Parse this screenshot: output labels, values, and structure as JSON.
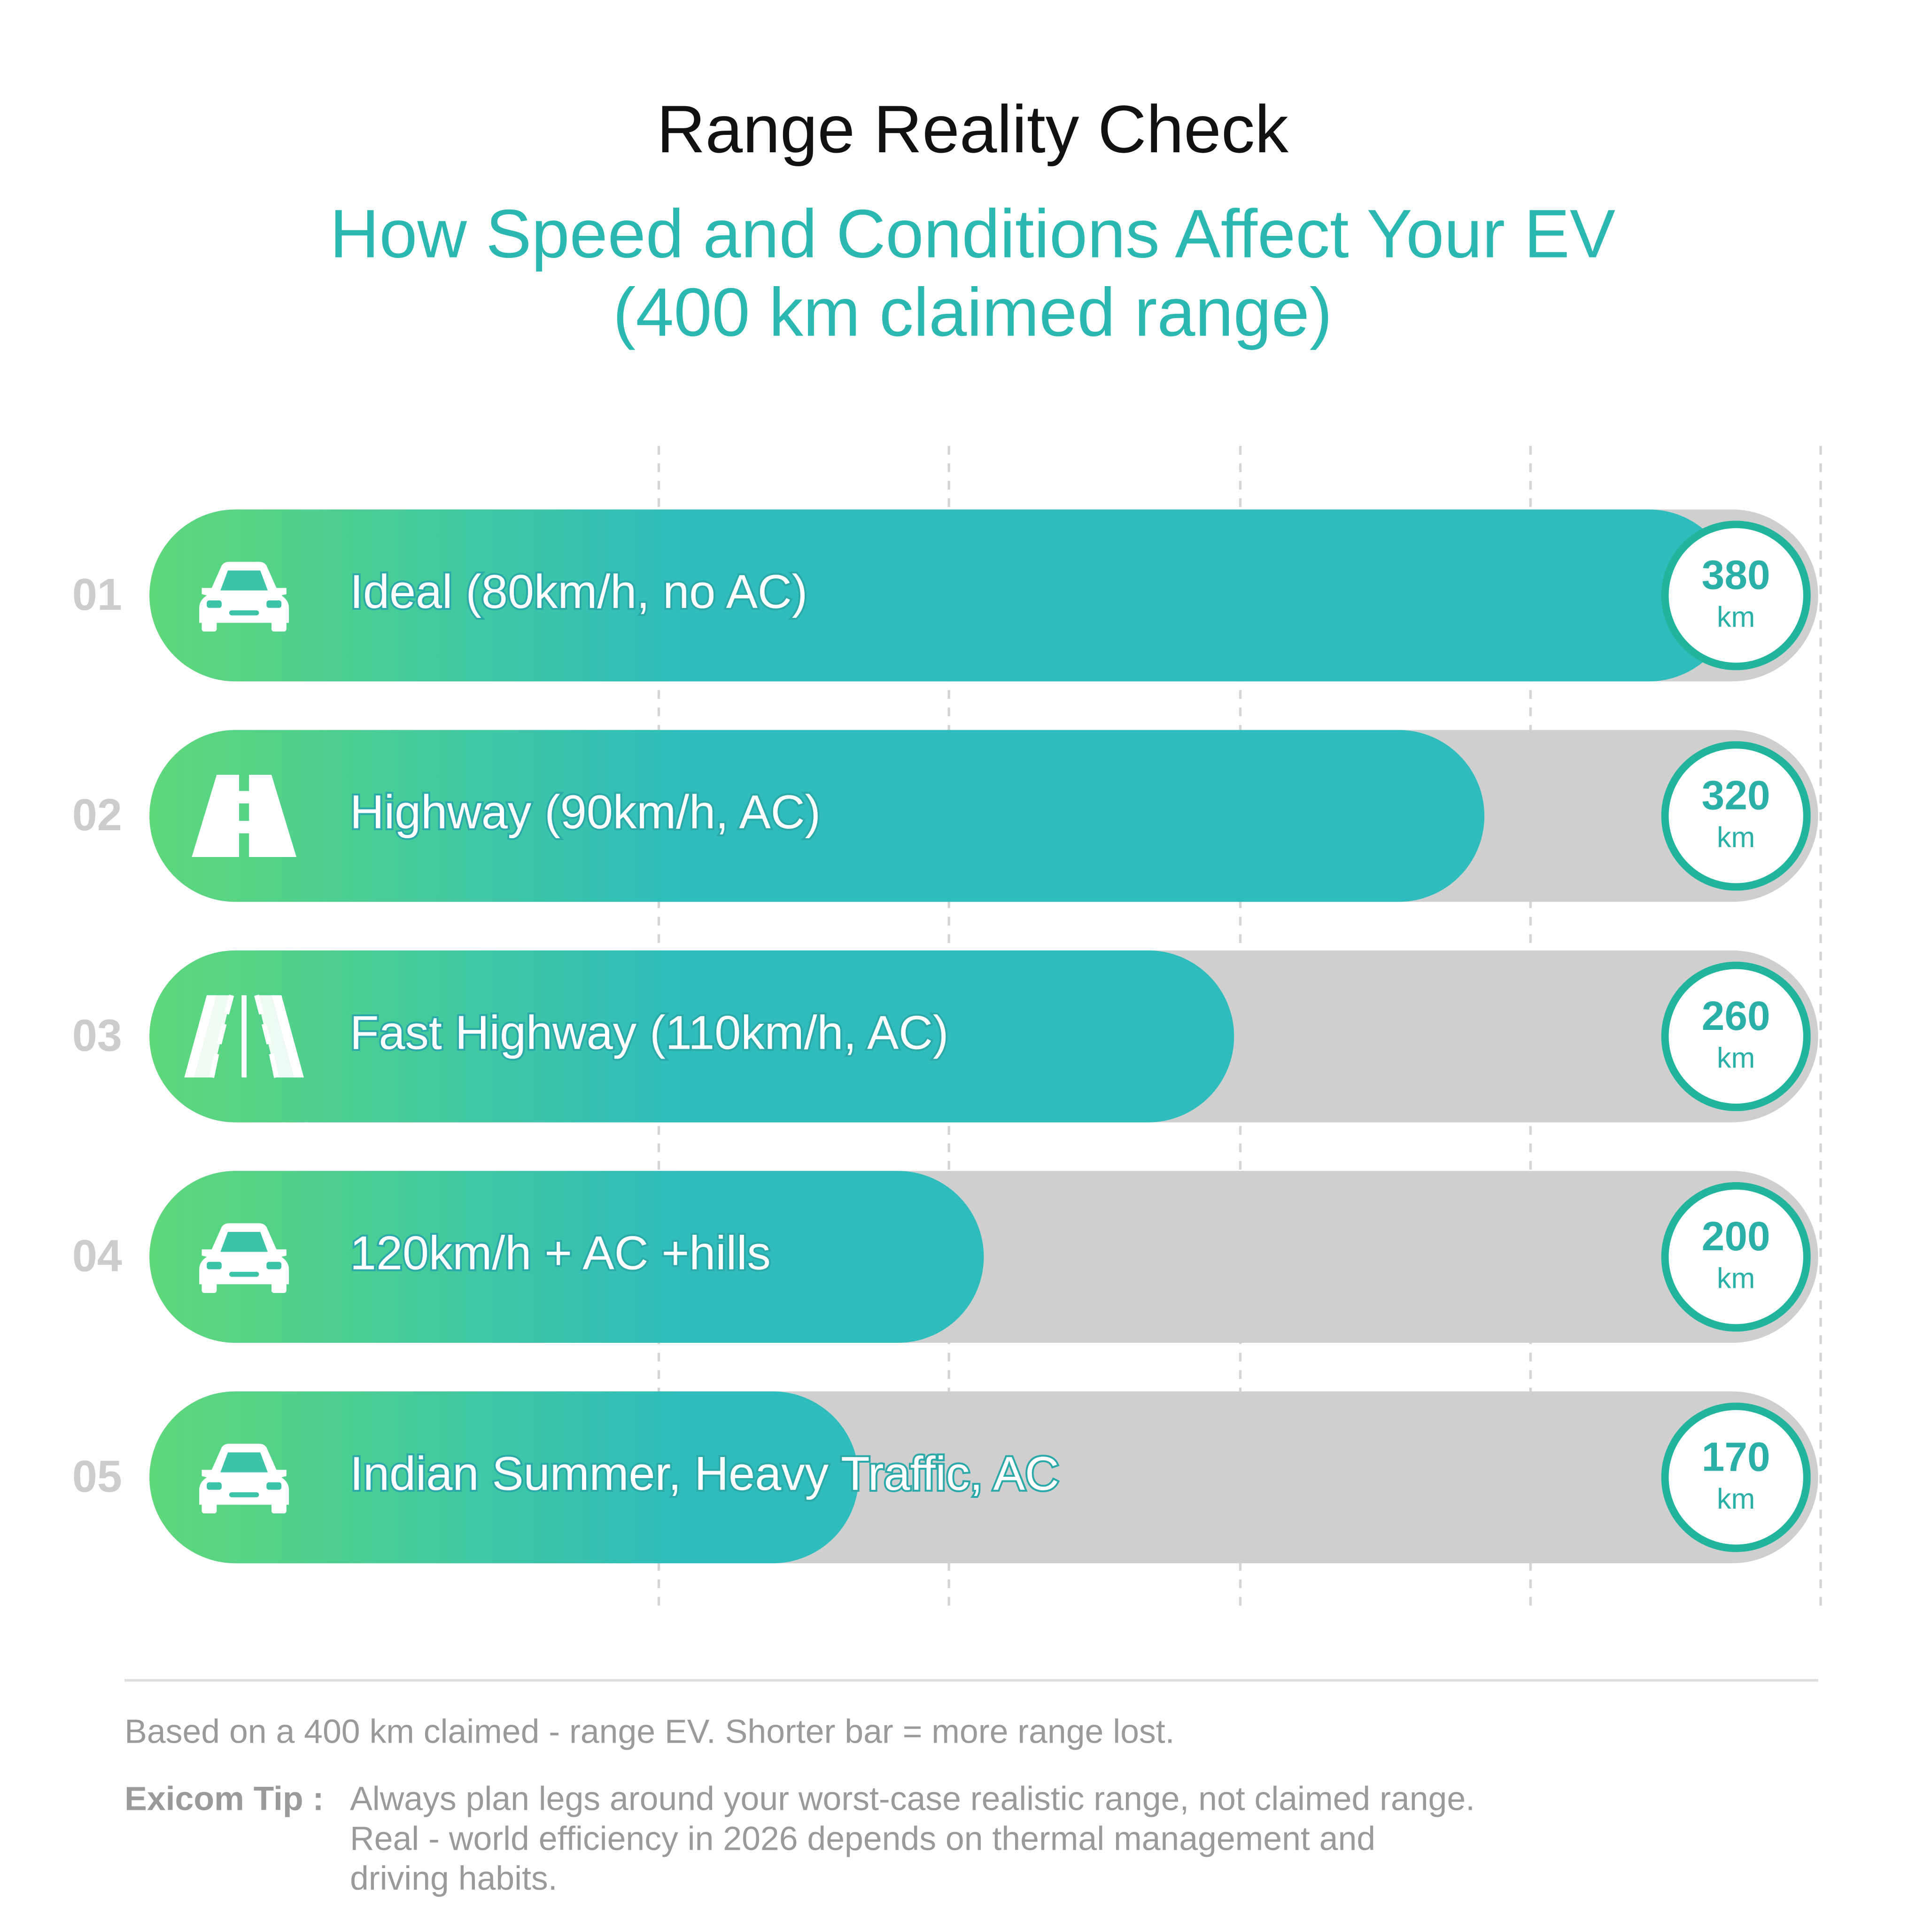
{
  "chart_data": {
    "type": "bar",
    "orientation": "horizontal",
    "title": "Range Reality Check",
    "subtitle": [
      "How Speed and Conditions Affect Your EV",
      "(400 km claimed range)"
    ],
    "row_numbers": [
      "01",
      "02",
      "03",
      "04",
      "05"
    ],
    "categories": [
      "Ideal (80km/h, no AC)",
      "Highway (90km/h, AC)",
      "Fast Highway (110km/h, AC)",
      "120km/h + AC +hills",
      "Indian Summer, Heavy Traffic, AC"
    ],
    "values": [
      380,
      320,
      260,
      200,
      170
    ],
    "unit": "km",
    "xlim": [
      0,
      400
    ],
    "color": "#2ebdbc",
    "gradient_start": "#5fd87a",
    "track_color": "#cfcfcf",
    "note": "Based on a 400 km claimed - range EV. Shorter bar = more range lost.",
    "tip_label": "Exicom Tip :",
    "tip": [
      "Always plan legs around your worst-case realistic range, not claimed range.",
      "Real - world efficiency in 2026 depends on thermal management and",
      "driving habits."
    ]
  }
}
